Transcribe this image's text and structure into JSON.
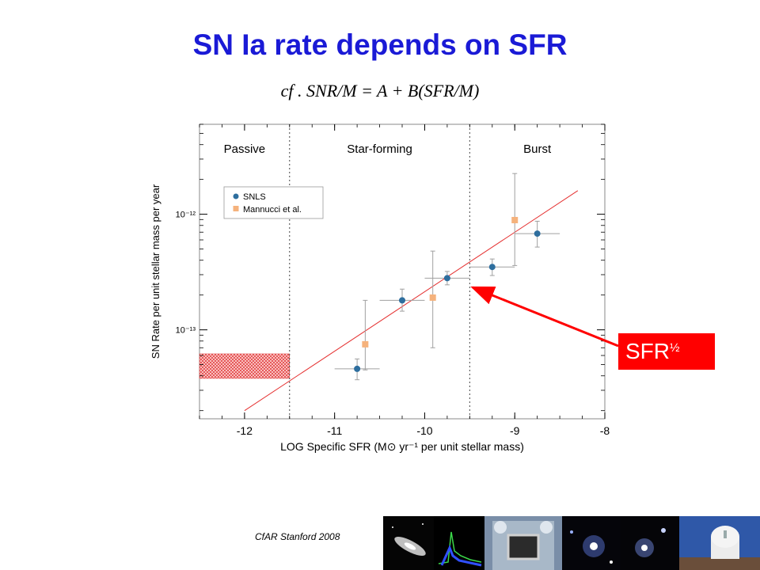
{
  "slide": {
    "title": "SN Ia rate depends on SFR",
    "formula": "cf .   SNR/M = A + B(SFR/M)",
    "footer": "CfAR Stanford 2008",
    "callout": {
      "label": "SFR",
      "superscript": "½"
    }
  },
  "photo_strip": [
    "galaxy-photo",
    "spectrum-plot",
    "instrument-photo",
    "galaxy-photo",
    "galaxy-photo",
    "observatory-photo"
  ],
  "chart_data": {
    "type": "scatter",
    "title": "",
    "xlabel": "LOG Specific SFR (M⊙ yr⁻¹ per unit stellar mass)",
    "ylabel": "SN Rate per unit stellar mass per year",
    "xlim": [
      -12.5,
      -8
    ],
    "ylim": [
      1.7e-14,
      6e-12
    ],
    "yscale": "log",
    "x_ticks": [
      -12,
      -11,
      -10,
      -9,
      -8
    ],
    "y_ticks": [
      {
        "value": 1e-13,
        "label": "10⁻¹³"
      },
      {
        "value": 1e-12,
        "label": "10⁻¹²"
      }
    ],
    "region_labels": [
      {
        "x": -12.5,
        "label": "Passive"
      },
      {
        "x": -11.5,
        "label": "Star-forming"
      },
      {
        "x": -9.5,
        "label": "Burst"
      }
    ],
    "region_boundaries": [
      -11.5,
      -9.5
    ],
    "legend_position": "top-left",
    "series": [
      {
        "name": "SNLS",
        "marker": "circle",
        "color": "#2e6e9e",
        "points": [
          {
            "x": -10.75,
            "y": 4.6e-14,
            "xerr": 0.25,
            "ylo": 3.7e-14,
            "yhi": 5.6e-14
          },
          {
            "x": -10.25,
            "y": 1.8e-13,
            "xerr": 0.25,
            "ylo": 1.45e-13,
            "yhi": 2.25e-13
          },
          {
            "x": -9.75,
            "y": 2.8e-13,
            "xerr": 0.25,
            "ylo": 2.45e-13,
            "yhi": 3.2e-13
          },
          {
            "x": -9.25,
            "y": 3.5e-13,
            "xerr": 0.25,
            "ylo": 2.95e-13,
            "yhi": 4.1e-13
          },
          {
            "x": -8.75,
            "y": 6.8e-13,
            "xerr": 0.25,
            "ylo": 5.2e-13,
            "yhi": 8.7e-13
          }
        ]
      },
      {
        "name": "Mannucci et al.",
        "marker": "square",
        "color": "#f5b27c",
        "points": [
          {
            "x": -10.66,
            "y": 7.5e-14,
            "ylo": 4.5e-14,
            "yhi": 1.8e-13
          },
          {
            "x": -9.91,
            "y": 1.9e-13,
            "ylo": 7e-14,
            "yhi": 4.8e-13
          },
          {
            "x": -9.0,
            "y": 8.9e-13,
            "ylo": 3.6e-13,
            "yhi": 2.25e-12
          }
        ]
      }
    ],
    "passive_band": {
      "x0": -12.5,
      "x1": -11.5,
      "y0": 3.8e-14,
      "y1": 6.2e-14
    },
    "fit_line": {
      "x": [
        -12.0,
        -8.3
      ],
      "y": [
        2e-14,
        1.6e-12
      ],
      "color": "#e53030"
    }
  }
}
